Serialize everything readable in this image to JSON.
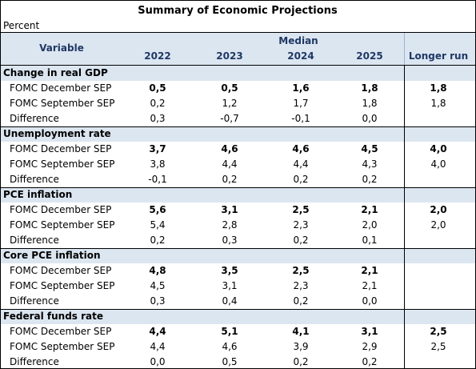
{
  "title": "Summary of Economic Projections",
  "subtitle": "Percent",
  "header": {
    "variable": "Variable",
    "median": "Median",
    "years": [
      "2022",
      "2023",
      "2024",
      "2025"
    ],
    "longer_run": "Longer run"
  },
  "sections": [
    {
      "name": "Change in real GDP",
      "rows": [
        {
          "label": "FOMC December SEP",
          "values": [
            "0,5",
            "0,5",
            "1,6",
            "1,8",
            "1,8"
          ]
        },
        {
          "label": "FOMC September SEP",
          "values": [
            "0,2",
            "1,2",
            "1,7",
            "1,8",
            "1,8"
          ]
        },
        {
          "label": "Difference",
          "values": [
            "0,3",
            "-0,7",
            "-0,1",
            "0,0"
          ]
        }
      ]
    },
    {
      "name": "Unemployment rate",
      "rows": [
        {
          "label": "FOMC December SEP",
          "values": [
            "3,7",
            "4,6",
            "4,6",
            "4,5",
            "4,0"
          ]
        },
        {
          "label": "FOMC September SEP",
          "values": [
            "3,8",
            "4,4",
            "4,4",
            "4,3",
            "4,0"
          ]
        },
        {
          "label": "Difference",
          "values": [
            "-0,1",
            "0,2",
            "0,2",
            "0,2"
          ]
        }
      ]
    },
    {
      "name": "PCE inflation",
      "rows": [
        {
          "label": "FOMC December SEP",
          "values": [
            "5,6",
            "3,1",
            "2,5",
            "2,1",
            "2,0"
          ]
        },
        {
          "label": "FOMC September SEP",
          "values": [
            "5,4",
            "2,8",
            "2,3",
            "2,0",
            "2,0"
          ]
        },
        {
          "label": "Difference",
          "values": [
            "0,2",
            "0,3",
            "0,2",
            "0,1"
          ]
        }
      ]
    },
    {
      "name": "Core PCE inflation",
      "rows": [
        {
          "label": "FOMC December SEP",
          "values": [
            "4,8",
            "3,5",
            "2,5",
            "2,1"
          ]
        },
        {
          "label": "FOMC September SEP",
          "values": [
            "4,5",
            "3,1",
            "2,3",
            "2,1"
          ]
        },
        {
          "label": "Difference",
          "values": [
            "0,3",
            "0,4",
            "0,2",
            "0,0"
          ]
        }
      ]
    },
    {
      "name": "Federal funds rate",
      "rows": [
        {
          "label": "FOMC December SEP",
          "values": [
            "4,4",
            "5,1",
            "4,1",
            "3,1",
            "2,5"
          ]
        },
        {
          "label": "FOMC September SEP",
          "values": [
            "4,4",
            "4,6",
            "3,9",
            "2,9",
            "2,5"
          ]
        },
        {
          "label": "Difference",
          "values": [
            "0,0",
            "0,5",
            "0,2",
            "0,2"
          ]
        }
      ]
    }
  ]
}
